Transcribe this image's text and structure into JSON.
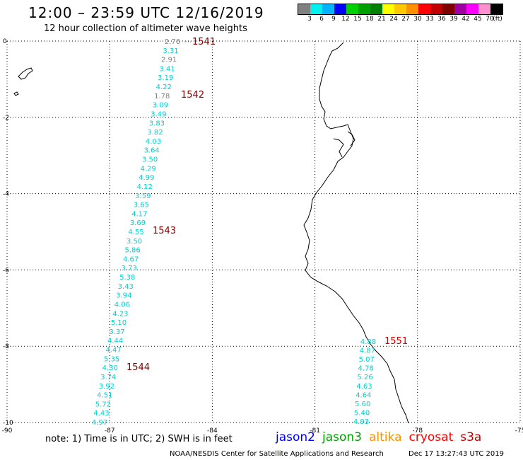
{
  "header": {
    "title": "12:00 – 23:59 UTC 12/16/2019",
    "subtitle": "12 hour collection of altimeter wave heights"
  },
  "color_scale": {
    "swatches": [
      "#808080",
      "#00f0f0",
      "#00b4ff",
      "#0000ff",
      "#00d000",
      "#00a000",
      "#008000",
      "#ffff00",
      "#ffc800",
      "#ff9000",
      "#ff0000",
      "#c00000",
      "#800000",
      "#a000a0",
      "#ff00ff",
      "#ff90d0",
      "#000000"
    ],
    "labels": [
      "3",
      "6",
      "9",
      "12",
      "15",
      "18",
      "21",
      "24",
      "27",
      "30",
      "33",
      "36",
      "39",
      "42",
      "45",
      "70",
      "(ft)"
    ]
  },
  "axes": {
    "x_ticks": [
      "-90",
      "-87",
      "-84",
      "-81",
      "-78",
      "-75"
    ],
    "y_ticks": [
      "0",
      "-2",
      "-4",
      "-6",
      "-8",
      "-10"
    ]
  },
  "tracks": [
    {
      "pass": "1541",
      "pass_color": "#800000",
      "values": [
        {
          "v": "2.76",
          "c": "#808080"
        },
        {
          "v": "3.31",
          "c": "#00d0d0"
        },
        {
          "v": "2.91",
          "c": "#808080"
        },
        {
          "v": "3.41",
          "c": "#00d0d0"
        },
        {
          "v": "3.19",
          "c": "#00d0d0"
        },
        {
          "v": "4.22",
          "c": "#00d0d0"
        },
        {
          "v": "1.78",
          "c": "#808080"
        },
        {
          "v": "3.09",
          "c": "#00d0d0"
        },
        {
          "v": "3.49",
          "c": "#00d0d0"
        },
        {
          "v": "3.83",
          "c": "#00d0d0"
        },
        {
          "v": "3.82",
          "c": "#00d0d0"
        },
        {
          "v": "4.03",
          "c": "#00d0d0"
        },
        {
          "v": "3.64",
          "c": "#00d0d0"
        },
        {
          "v": "3.50",
          "c": "#00d0d0"
        },
        {
          "v": "4.29",
          "c": "#00d0d0"
        },
        {
          "v": "4.99",
          "c": "#00d0d0"
        },
        {
          "v": "4.12",
          "c": "#00d0d0"
        },
        {
          "v": "3.59",
          "c": "#00d0d0"
        },
        {
          "v": "3.65",
          "c": "#00d0d0"
        },
        {
          "v": "4.17",
          "c": "#00d0d0"
        },
        {
          "v": "3.69",
          "c": "#00d0d0"
        },
        {
          "v": "4.55",
          "c": "#00d0d0"
        },
        {
          "v": "3.50",
          "c": "#00d0d0"
        },
        {
          "v": "5.86",
          "c": "#00d0d0"
        },
        {
          "v": "4.67",
          "c": "#00d0d0"
        },
        {
          "v": "3.73",
          "c": "#00d0d0"
        },
        {
          "v": "5.38",
          "c": "#00d0d0"
        },
        {
          "v": "3.43",
          "c": "#00d0d0"
        },
        {
          "v": "3.94",
          "c": "#00d0d0"
        },
        {
          "v": "4.06",
          "c": "#00d0d0"
        },
        {
          "v": "4.23",
          "c": "#00d0d0"
        },
        {
          "v": "5.10",
          "c": "#00d0d0"
        },
        {
          "v": "3.37",
          "c": "#00d0d0"
        },
        {
          "v": "4.44",
          "c": "#00d0d0"
        },
        {
          "v": "4.47",
          "c": "#00d0d0"
        },
        {
          "v": "5.35",
          "c": "#00d0d0"
        },
        {
          "v": "4.30",
          "c": "#00d0d0"
        },
        {
          "v": "3.74",
          "c": "#00d0d0"
        },
        {
          "v": "3.92",
          "c": "#00d0d0"
        },
        {
          "v": "4.51",
          "c": "#00d0d0"
        },
        {
          "v": "5.72",
          "c": "#00d0d0"
        },
        {
          "v": "4.43",
          "c": "#00d0d0"
        },
        {
          "v": "4.97",
          "c": "#00d0d0"
        }
      ]
    },
    {
      "pass": "1551",
      "pass_color": "#d00000",
      "values": [
        {
          "v": "4.88",
          "c": "#00d0d0"
        },
        {
          "v": "4.87",
          "c": "#00d0d0"
        },
        {
          "v": "5.07",
          "c": "#00d0d0"
        },
        {
          "v": "4.78",
          "c": "#00d0d0"
        },
        {
          "v": "5.26",
          "c": "#00d0d0"
        },
        {
          "v": "4.63",
          "c": "#00d0d0"
        },
        {
          "v": "4.64",
          "c": "#00d0d0"
        },
        {
          "v": "5.60",
          "c": "#00d0d0"
        },
        {
          "v": "5.40",
          "c": "#00d0d0"
        },
        {
          "v": "4.93",
          "c": "#00d0d0"
        }
      ]
    }
  ],
  "pass_labels": [
    {
      "text": "1541",
      "color": "#800000"
    },
    {
      "text": "1542",
      "color": "#800000"
    },
    {
      "text": "1543",
      "color": "#800000"
    },
    {
      "text": "1544",
      "color": "#800000"
    },
    {
      "text": "1551",
      "color": "#d00000"
    }
  ],
  "footer": {
    "note": "note:  1) Time is in UTC;  2) SWH is in feet",
    "credit": "NOAA/NESDIS Center for Satellite Applications and Research",
    "timestamp": "Dec 17 13:27:43 UTC 2019"
  },
  "legend": [
    {
      "label": "jason2",
      "color": "#0000ff"
    },
    {
      "label": "jason3",
      "color": "#00a000"
    },
    {
      "label": "altika",
      "color": "#ff9000"
    },
    {
      "label": "cryosat",
      "color": "#ff0000"
    },
    {
      "label": "s3a",
      "color": "#c00000"
    }
  ]
}
